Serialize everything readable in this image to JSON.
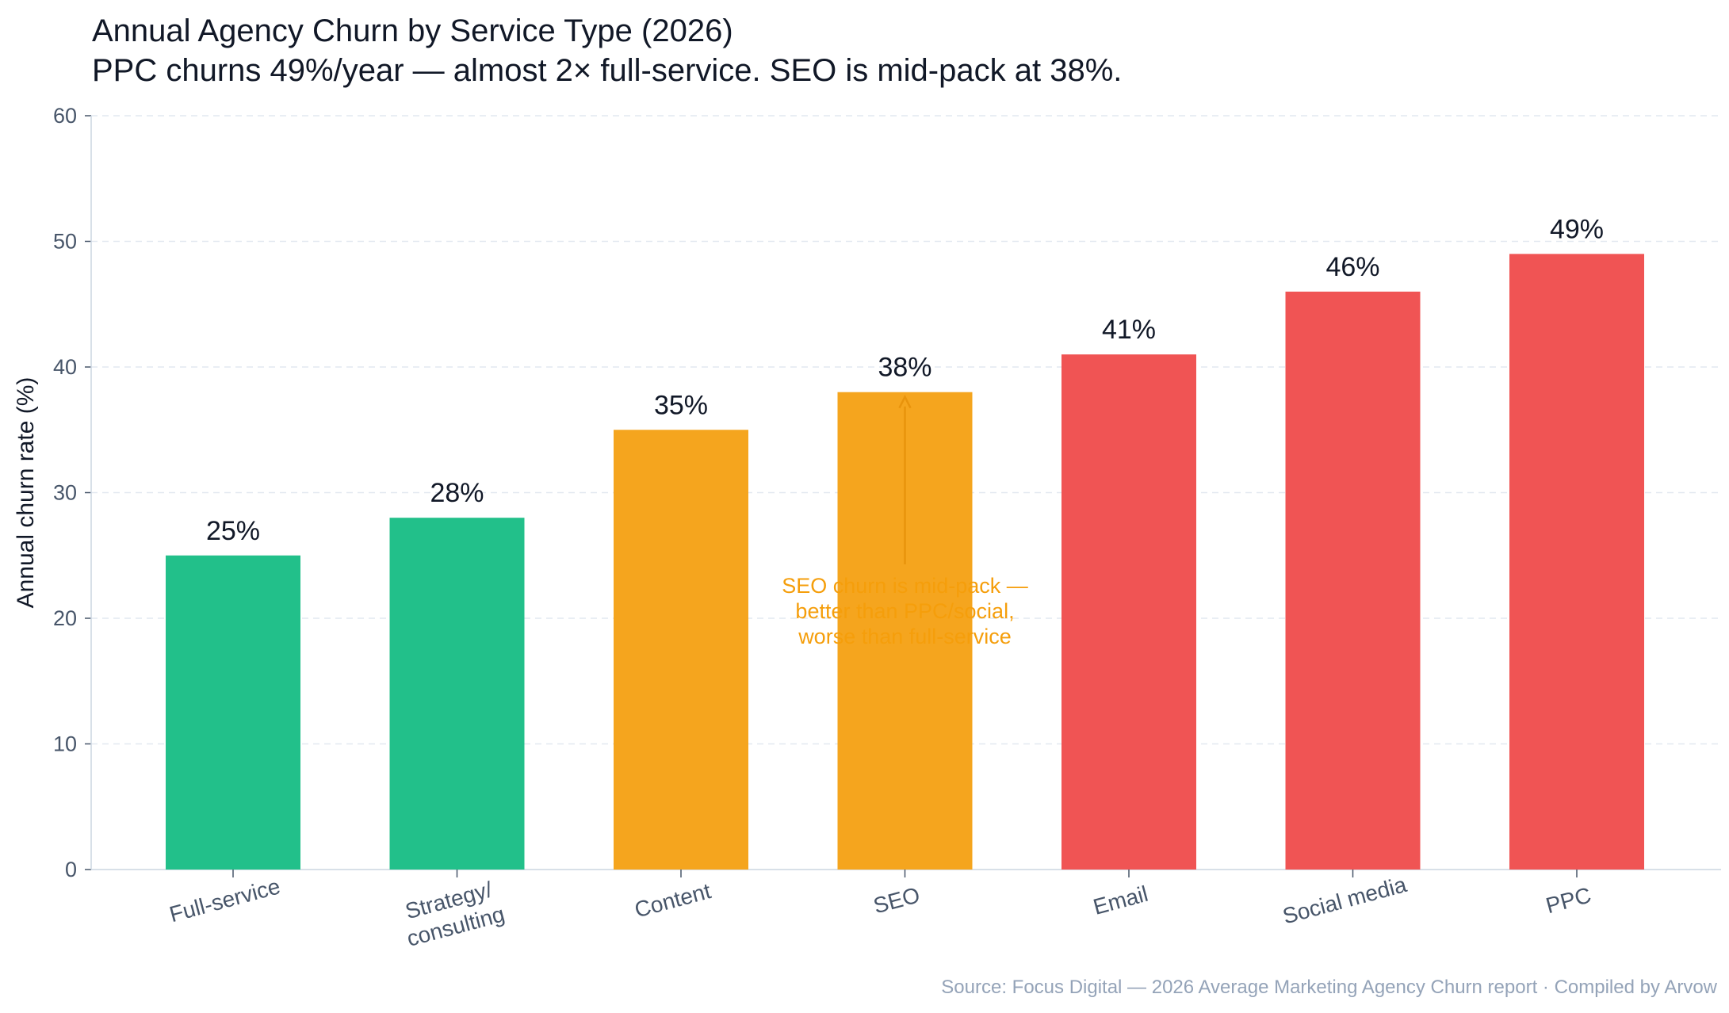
{
  "chart_data": {
    "type": "bar",
    "title": "Annual Agency Churn by Service Type (2026)",
    "subtitle": "PPC churns 49%/year — almost 2× full-service. SEO is mid-pack at 38%.",
    "xlabel": "",
    "ylabel": "Annual churn rate (%)",
    "ylim": [
      0,
      60
    ],
    "yticks": [
      0,
      10,
      20,
      30,
      40,
      50,
      60
    ],
    "grid": true,
    "categories": [
      "Full-service",
      "Strategy/\nconsulting",
      "Content",
      "SEO",
      "Email",
      "Social media",
      "PPC"
    ],
    "values": [
      25,
      28,
      35,
      38,
      41,
      46,
      49
    ],
    "value_labels": [
      "25%",
      "28%",
      "35%",
      "38%",
      "41%",
      "46%",
      "49%"
    ],
    "bar_colors": [
      "#22c08a",
      "#22c08a",
      "#f5a51e",
      "#f5a51e",
      "#f05454",
      "#f05454",
      "#f05454"
    ],
    "annotation": {
      "text": "SEO churn is mid-pack —\nbetter than PPC/social,\nworse than full-service",
      "target_category": "SEO",
      "target_value": 38,
      "color": "#f59e0b"
    }
  },
  "colors": {
    "text": "#111827",
    "axis_text": "#475569",
    "grid": "#e2e8f0",
    "source": "#94a3b8"
  },
  "source": "Source: Focus Digital — 2026 Average Marketing Agency Churn report · Compiled by Arvow"
}
